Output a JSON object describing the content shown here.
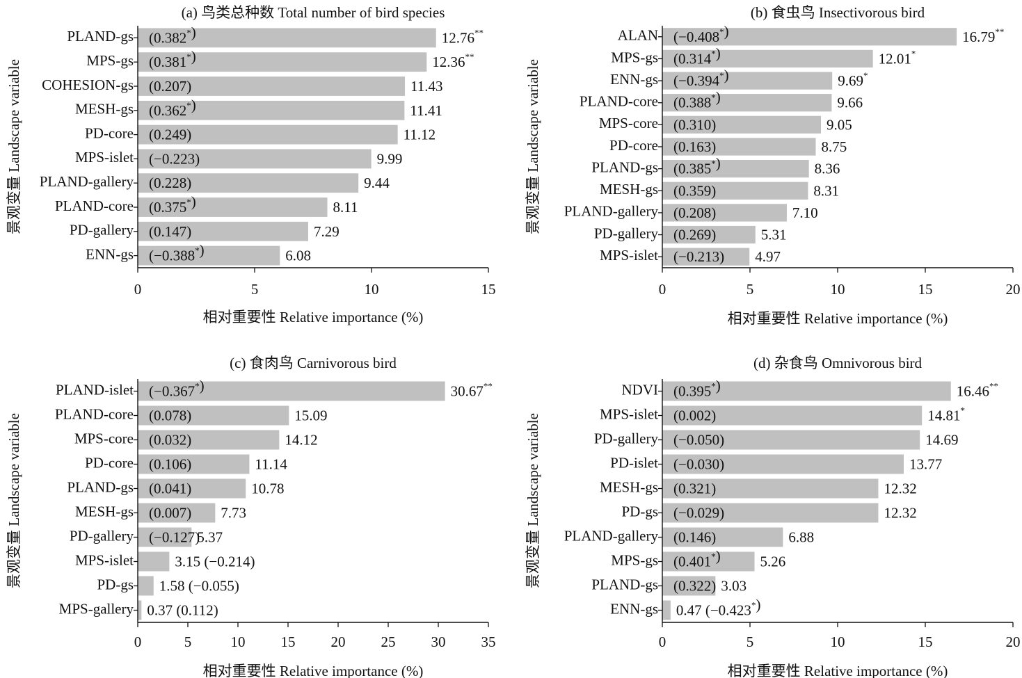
{
  "chart_data": [
    {
      "type": "bar",
      "orientation": "horizontal",
      "title": "(a) 鸟类总种数 Total number of bird species",
      "xlabel": "相对重要性 Relative importance (%)",
      "ylabel": "景观变量 Landscape variable",
      "xlim": [
        0,
        15
      ],
      "xticks": [
        "0",
        "5",
        "10",
        "15"
      ],
      "categories": [
        "PLAND-gs",
        "MPS-gs",
        "COHESION-gs",
        "MESH-gs",
        "PD-core",
        "MPS-islet",
        "PLAND-gallery",
        "PLAND-core",
        "PD-gallery",
        "ENN-gs"
      ],
      "values": [
        12.76,
        12.36,
        11.43,
        11.41,
        11.12,
        9.99,
        9.44,
        8.11,
        7.29,
        6.08
      ],
      "value_labels": [
        "12.76**",
        "12.36**",
        "11.43",
        "11.41",
        "11.12",
        "9.99",
        "9.44",
        "8.11",
        "7.29",
        "6.08"
      ],
      "corr_labels": [
        "(0.382*)",
        "(0.381*)",
        "(0.207)",
        "(0.362*)",
        "(0.249)",
        "(−0.223)",
        "(0.228)",
        "(0.375*)",
        "(0.147)",
        "(−0.388*)"
      ],
      "bar_color": "#c0c0c0",
      "grid": false
    },
    {
      "type": "bar",
      "orientation": "horizontal",
      "title": "(b) 食虫鸟 Insectivorous bird",
      "xlabel": "相对重要性 Relative importance (%)",
      "ylabel": "景观变量 Landscape variable",
      "xlim": [
        0,
        20
      ],
      "xticks": [
        "0",
        "5",
        "10",
        "15",
        "20"
      ],
      "categories": [
        "ALAN",
        "MPS-gs",
        "ENN-gs",
        "PLAND-core",
        "MPS-core",
        "PD-core",
        "PLAND-gs",
        "MESH-gs",
        "PLAND-gallery",
        "PD-gallery",
        "MPS-islet"
      ],
      "values": [
        16.79,
        12.01,
        9.69,
        9.66,
        9.05,
        8.75,
        8.36,
        8.31,
        7.1,
        5.31,
        4.97
      ],
      "value_labels": [
        "16.79**",
        "12.01*",
        "9.69*",
        "9.66",
        "9.05",
        "8.75",
        "8.36",
        "8.31",
        "7.10",
        "5.31",
        "4.97"
      ],
      "corr_labels": [
        "(−0.408*)",
        "(0.314*)",
        "(−0.394*)",
        "(0.388*)",
        "(0.310)",
        "(0.163)",
        "(0.385*)",
        "(0.359)",
        "(0.208)",
        "(0.269)",
        "(−0.213)"
      ],
      "bar_color": "#c0c0c0",
      "grid": false
    },
    {
      "type": "bar",
      "orientation": "horizontal",
      "title": "(c) 食肉鸟 Carnivorous bird",
      "xlabel": "相对重要性 Relative importance (%)",
      "ylabel": "景观变量 Landscape variable",
      "xlim": [
        0,
        35
      ],
      "xticks": [
        "0",
        "5",
        "10",
        "15",
        "20",
        "25",
        "30",
        "35"
      ],
      "categories": [
        "PLAND-islet",
        "PLAND-core",
        "MPS-core",
        "PD-core",
        "PLAND-gs",
        "MESH-gs",
        "PD-gallery",
        "MPS-islet",
        "PD-gs",
        "MPS-gallery"
      ],
      "values": [
        30.67,
        15.09,
        14.12,
        11.14,
        10.78,
        7.73,
        5.37,
        3.15,
        1.58,
        0.37
      ],
      "value_labels": [
        "30.67**",
        "15.09",
        "14.12",
        "11.14",
        "10.78",
        "7.73",
        "5.37",
        "3.15 (−0.214)",
        "1.58 (−0.055)",
        "0.37 (0.112)"
      ],
      "corr_labels": [
        "(−0.367*)",
        "(0.078)",
        "(0.032)",
        "(0.106)",
        "(0.041)",
        "(0.007)",
        "(−0.127)",
        "",
        "",
        ""
      ],
      "bar_color": "#c0c0c0",
      "grid": false
    },
    {
      "type": "bar",
      "orientation": "horizontal",
      "title": "(d) 杂食鸟 Omnivorous bird",
      "xlabel": "相对重要性 Relative importance (%)",
      "ylabel": "景观变量 Landscape variable",
      "xlim": [
        0,
        20
      ],
      "xticks": [
        "0",
        "5",
        "10",
        "15",
        "20"
      ],
      "categories": [
        "NDVI",
        "MPS-islet",
        "PD-gallery",
        "PD-islet",
        "MESH-gs",
        "PD-gs",
        "PLAND-gallery",
        "MPS-gs",
        "PLAND-gs",
        "ENN-gs"
      ],
      "values": [
        16.46,
        14.81,
        14.69,
        13.77,
        12.32,
        12.32,
        6.88,
        5.26,
        3.03,
        0.47
      ],
      "value_labels": [
        "16.46**",
        "14.81*",
        "14.69",
        "13.77",
        "12.32",
        "12.32",
        "6.88",
        "5.26",
        "3.03",
        "0.47 (−0.423*)"
      ],
      "corr_labels": [
        "(0.395*)",
        "(0.002)",
        "(−0.050)",
        "(−0.030)",
        "(0.321)",
        "(−0.029)",
        "(0.146)",
        "(0.401*)",
        "(0.322)",
        ""
      ],
      "bar_color": "#c0c0c0",
      "grid": false
    }
  ]
}
